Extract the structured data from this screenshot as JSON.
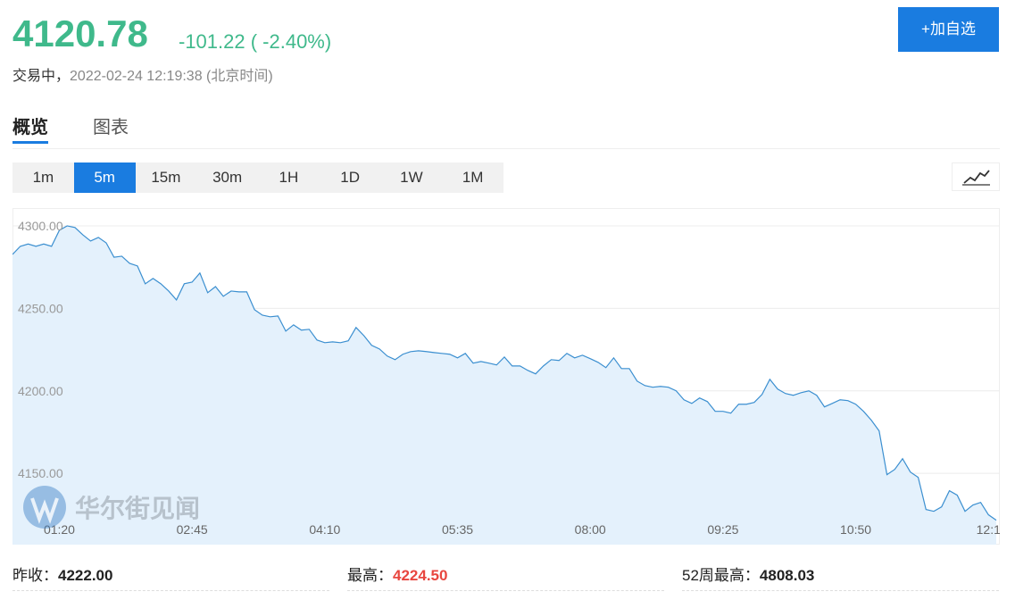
{
  "quote": {
    "price": "4120.78",
    "change": "-101.22 ( -2.40%)",
    "status": "交易中，",
    "time": "2022-02-24 12:19:38 (北京时间)",
    "button": "+加自选"
  },
  "tabs": [
    "概览",
    "图表"
  ],
  "intervals": [
    "1m",
    "5m",
    "15m",
    "30m",
    "1H",
    "1D",
    "1W",
    "1M"
  ],
  "watermark": "华尔街见闻",
  "stats": [
    {
      "label": "昨收：",
      "value": "4222.00"
    },
    {
      "label": "最高：",
      "value": "4224.50"
    },
    {
      "label": "52周最高：",
      "value": "4808.03"
    }
  ],
  "chart_data": {
    "type": "area",
    "color": "#3b8fd0",
    "fill": "#e4f1fc",
    "grid": true,
    "ylim": [
      4106.8,
      4310.8
    ],
    "yticks": [
      {
        "value": 4150,
        "label": "4150.00"
      },
      {
        "value": 4200,
        "label": "4200.00"
      },
      {
        "value": 4250,
        "label": "4250.00"
      },
      {
        "value": 4300,
        "label": "4300.00"
      }
    ],
    "categories": [
      null,
      null,
      null,
      null,
      null,
      null,
      "01:20",
      null,
      null,
      null,
      null,
      null,
      null,
      null,
      null,
      null,
      null,
      null,
      null,
      null,
      null,
      null,
      null,
      "02:45",
      null,
      null,
      null,
      null,
      null,
      null,
      null,
      null,
      null,
      null,
      null,
      null,
      null,
      null,
      null,
      null,
      "04:10",
      null,
      null,
      null,
      null,
      null,
      null,
      null,
      null,
      null,
      null,
      null,
      null,
      null,
      null,
      null,
      null,
      "05:35",
      null,
      null,
      null,
      null,
      null,
      null,
      null,
      null,
      null,
      null,
      null,
      null,
      null,
      null,
      null,
      null,
      "08:00",
      null,
      null,
      null,
      null,
      null,
      null,
      null,
      null,
      null,
      null,
      null,
      null,
      null,
      null,
      null,
      null,
      "09:25",
      null,
      null,
      null,
      null,
      null,
      null,
      null,
      null,
      null,
      null,
      null,
      null,
      null,
      null,
      null,
      null,
      "10:50",
      null,
      null,
      null,
      null,
      null,
      null,
      null,
      null,
      null,
      null,
      null,
      null,
      null,
      null,
      null,
      null,
      "12:1",
      null
    ],
    "values": [
      4282.7,
      4287.6,
      4289,
      4287.6,
      4289,
      4287.6,
      4297.3,
      4300,
      4299,
      4294.6,
      4290.8,
      4293,
      4289.7,
      4281,
      4281.6,
      4277.3,
      4275.7,
      4264.9,
      4268.1,
      4264.9,
      4260.5,
      4255.1,
      4264.9,
      4265.9,
      4271.4,
      4259.5,
      4263.2,
      4257.3,
      4260.5,
      4260,
      4260,
      4249.2,
      4245.9,
      4244.9,
      4245.4,
      4236.2,
      4240,
      4236.8,
      4237.3,
      4230.8,
      4229.2,
      4229.7,
      4229.2,
      4230.3,
      4238.4,
      4233.5,
      4227.6,
      4225.4,
      4221.1,
      4218.9,
      4222.2,
      4223.8,
      4224.3,
      4223.8,
      4223.2,
      4222.7,
      4222.2,
      4220,
      4222.7,
      4216.8,
      4217.8,
      4216.8,
      4215.7,
      4220.5,
      4215.1,
      4215.1,
      4212.4,
      4210.3,
      4215.1,
      4218.9,
      4218.4,
      4222.7,
      4220,
      4221.6,
      4219.5,
      4217.3,
      4214.1,
      4220,
      4213.5,
      4213.5,
      4205.9,
      4203.2,
      4202.2,
      4202.7,
      4202.2,
      4200,
      4194.6,
      4192.4,
      4195.7,
      4193.5,
      4187.6,
      4187.6,
      4186.5,
      4191.9,
      4191.9,
      4193,
      4197.8,
      4207,
      4201.1,
      4198.4,
      4197.3,
      4198.9,
      4200,
      4197.3,
      4190.3,
      4192.4,
      4194.6,
      4194.1,
      4191.9,
      4187.6,
      4182.2,
      4175.7,
      4149.2,
      4152.4,
      4158.9,
      4150.8,
      4147.6,
      4128.1,
      4127,
      4129.7,
      4139.5,
      4136.8,
      4127,
      4130.8,
      4132.4,
      4124.9,
      4121.6
    ]
  }
}
